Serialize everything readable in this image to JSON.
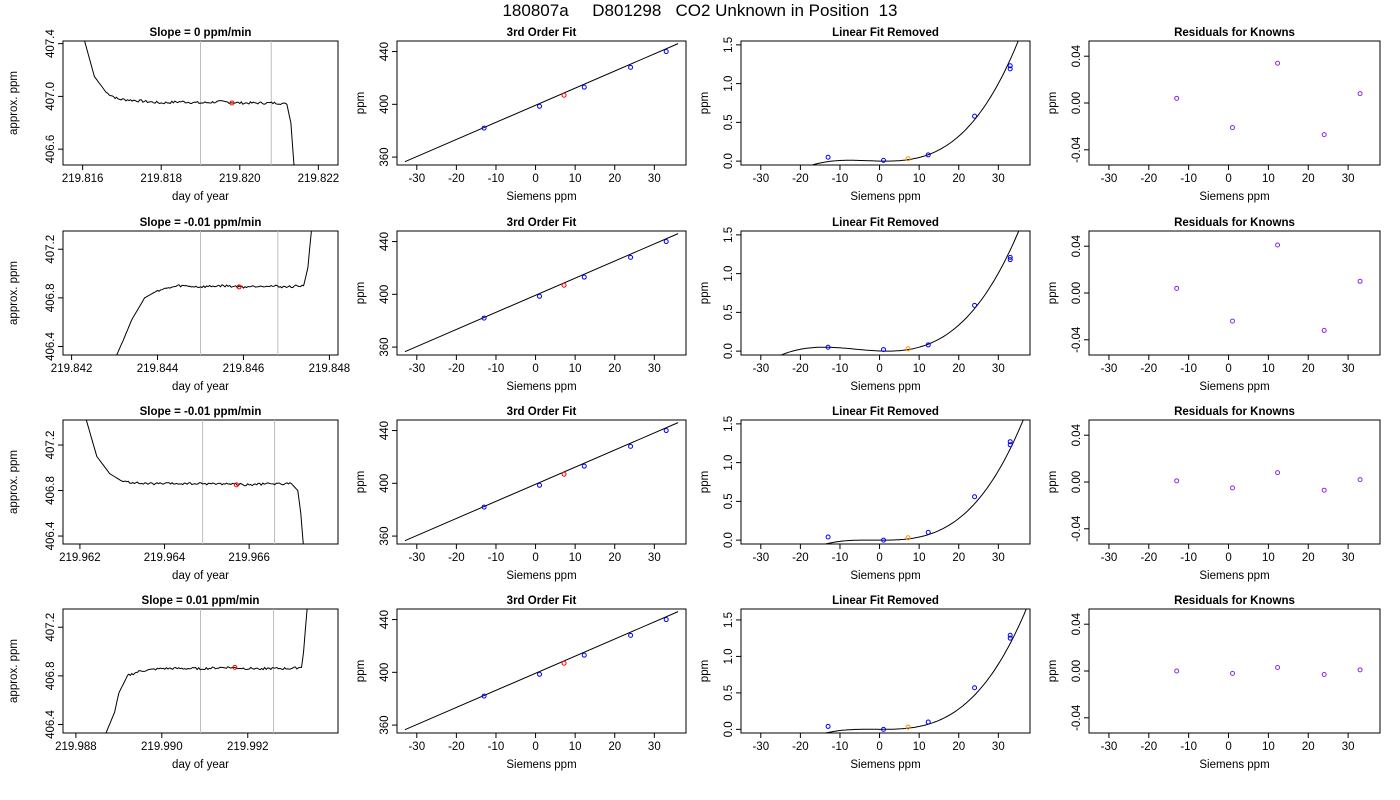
{
  "page_title": "180807a     D801298   CO2 Unknown in Position  13",
  "colors": {
    "axis": "#000000",
    "vline": "#bebebe",
    "known": "#0000ff",
    "unknown": "#ff0000",
    "residual": "#8a2be2",
    "unknown_lfr": "#ff8c00"
  },
  "chart_data": [
    {
      "type": "line",
      "panel": "time-series",
      "row": 1,
      "title": "Slope =  0  ppm/min",
      "xlabel": "day of year",
      "ylabel": "approx. ppm",
      "xlim": [
        219.8155,
        219.8225
      ],
      "ylim": [
        406.48,
        407.42
      ],
      "xticks": [
        219.816,
        219.818,
        219.82,
        219.822
      ],
      "xtick_labels": [
        "219.816",
        "219.818",
        "219.820",
        "219.822"
      ],
      "yticks": [
        406.6,
        407.0,
        407.4
      ],
      "ytick_labels": [
        "406.6",
        "407.0",
        "407.4"
      ],
      "vlines": [
        219.819,
        219.8208
      ],
      "marker": {
        "x": 219.8198,
        "y": 406.95
      },
      "trace": [
        [
          219.8159,
          408.2
        ],
        [
          219.81605,
          407.42
        ],
        [
          219.8163,
          407.15
        ],
        [
          219.8166,
          407.03
        ],
        [
          219.8169,
          406.98
        ],
        [
          219.8173,
          406.97
        ],
        [
          219.818,
          406.95
        ],
        [
          219.8185,
          406.96
        ],
        [
          219.819,
          406.95
        ],
        [
          219.8195,
          406.96
        ],
        [
          219.82,
          406.95
        ],
        [
          219.8205,
          406.95
        ],
        [
          219.821,
          406.95
        ],
        [
          219.8212,
          406.94
        ],
        [
          219.8213,
          406.8
        ],
        [
          219.82138,
          406.48
        ]
      ],
      "noise": 0.012
    },
    {
      "type": "scatter",
      "panel": "fit",
      "row": 1,
      "title": "3rd Order Fit",
      "xlabel": "Siemens ppm",
      "ylabel": "ppm",
      "xlim": [
        -35,
        38
      ],
      "ylim": [
        354,
        448
      ],
      "xticks": [
        -30,
        -20,
        -10,
        0,
        10,
        20,
        30
      ],
      "yticks": [
        360,
        400,
        440
      ],
      "knowns": [
        [
          -13,
          382
        ],
        [
          1,
          398.5
        ],
        [
          12.3,
          413
        ],
        [
          24,
          428
        ],
        [
          33,
          440
        ]
      ],
      "unknown": [
        [
          7.2,
          406.9
        ]
      ],
      "line": [
        [
          -33,
          356.5
        ],
        [
          36,
          446
        ]
      ]
    },
    {
      "type": "scatter",
      "panel": "linear-fit-removed",
      "row": 1,
      "title": "Linear Fit Removed",
      "xlabel": "Siemens ppm",
      "ylabel": "ppm",
      "xlim": [
        -35,
        38
      ],
      "ylim": [
        -0.05,
        1.55
      ],
      "xticks": [
        -30,
        -20,
        -10,
        0,
        10,
        20,
        30
      ],
      "yticks": [
        0,
        0.5,
        1,
        1.5
      ],
      "ytick_labels": [
        "0.0",
        "0.5",
        "1.0",
        "1.5"
      ],
      "knowns": [
        [
          -13,
          0.05
        ],
        [
          1,
          0.01
        ],
        [
          12.3,
          0.08
        ],
        [
          24,
          0.58
        ],
        [
          33,
          1.19
        ],
        [
          33,
          1.23
        ]
      ],
      "unknown": [
        [
          7.2,
          0.03
        ]
      ],
      "curve": {
        "root": 1.5,
        "a": 0.00088,
        "b": 0.0,
        "c": -12.0
      }
    },
    {
      "type": "scatter",
      "panel": "residuals",
      "row": 1,
      "title": "Residuals for Knowns",
      "xlabel": "Siemens ppm",
      "ylabel": "ppm",
      "xlim": [
        -35,
        38
      ],
      "ylim": [
        -0.053,
        0.053
      ],
      "xticks": [
        -30,
        -20,
        -10,
        0,
        10,
        20,
        30
      ],
      "yticks": [
        -0.04,
        0,
        0.04
      ],
      "ytick_labels": [
        "-0.04",
        "0.00",
        "0.04"
      ],
      "points": [
        [
          -13,
          0.004
        ],
        [
          1,
          -0.021
        ],
        [
          12.3,
          0.034
        ],
        [
          24,
          -0.027
        ],
        [
          33,
          0.008
        ]
      ]
    },
    {
      "type": "line",
      "panel": "time-series",
      "row": 2,
      "title": "Slope =  -0.01  ppm/min",
      "xlabel": "day of year",
      "ylabel": "approx. ppm",
      "xlim": [
        219.8418,
        219.8482
      ],
      "ylim": [
        406.33,
        407.35
      ],
      "xticks": [
        219.842,
        219.844,
        219.846,
        219.848
      ],
      "xtick_labels": [
        "219.842",
        "219.844",
        "219.846",
        "219.848"
      ],
      "yticks": [
        406.4,
        406.8,
        407.2
      ],
      "ytick_labels": [
        "406.4",
        "406.8",
        "407.2"
      ],
      "vlines": [
        219.845,
        219.8468
      ],
      "marker": {
        "x": 219.8459,
        "y": 406.89
      },
      "trace": [
        [
          219.84305,
          406.33
        ],
        [
          219.8432,
          406.45
        ],
        [
          219.8434,
          406.62
        ],
        [
          219.8437,
          406.8
        ],
        [
          219.844,
          406.86
        ],
        [
          219.8445,
          406.9
        ],
        [
          219.845,
          406.89
        ],
        [
          219.8455,
          406.9
        ],
        [
          219.846,
          406.89
        ],
        [
          219.8465,
          406.9
        ],
        [
          219.847,
          406.89
        ],
        [
          219.8474,
          406.9
        ],
        [
          219.8475,
          407.05
        ],
        [
          219.84758,
          407.35
        ]
      ],
      "noise": 0.012
    },
    {
      "type": "scatter",
      "panel": "fit",
      "row": 2,
      "title": "3rd Order Fit",
      "xlabel": "Siemens ppm",
      "ylabel": "ppm",
      "xlim": [
        -35,
        38
      ],
      "ylim": [
        354,
        448
      ],
      "xticks": [
        -30,
        -20,
        -10,
        0,
        10,
        20,
        30
      ],
      "yticks": [
        360,
        400,
        440
      ],
      "knowns": [
        [
          -13,
          382
        ],
        [
          1,
          398.5
        ],
        [
          12.3,
          413
        ],
        [
          24,
          428
        ],
        [
          33,
          440
        ]
      ],
      "unknown": [
        [
          7.2,
          406.9
        ]
      ],
      "line": [
        [
          -33,
          356.5
        ],
        [
          36,
          446
        ]
      ]
    },
    {
      "type": "scatter",
      "panel": "linear-fit-removed",
      "row": 2,
      "title": "Linear Fit Removed",
      "xlabel": "Siemens ppm",
      "ylabel": "ppm",
      "xlim": [
        -35,
        38
      ],
      "ylim": [
        -0.05,
        1.55
      ],
      "xticks": [
        -30,
        -20,
        -10,
        0,
        10,
        20,
        30
      ],
      "yticks": [
        0,
        0.5,
        1,
        1.5
      ],
      "ytick_labels": [
        "0.0",
        "0.5",
        "1.0",
        "1.5"
      ],
      "knowns": [
        [
          -13,
          0.05
        ],
        [
          1,
          0.02
        ],
        [
          12.3,
          0.08
        ],
        [
          24,
          0.59
        ],
        [
          33,
          1.18
        ],
        [
          33,
          1.21
        ]
      ],
      "unknown": [
        [
          7.2,
          0.03
        ]
      ],
      "curve": {
        "root": 2.0,
        "a": 0.00074,
        "b": 0.0,
        "c": -22.0
      }
    },
    {
      "type": "scatter",
      "panel": "residuals",
      "row": 2,
      "title": "Residuals for Knowns",
      "xlabel": "Siemens ppm",
      "ylabel": "ppm",
      "xlim": [
        -35,
        38
      ],
      "ylim": [
        -0.053,
        0.053
      ],
      "xticks": [
        -30,
        -20,
        -10,
        0,
        10,
        20,
        30
      ],
      "yticks": [
        -0.04,
        0,
        0.04
      ],
      "ytick_labels": [
        "-0.04",
        "0.00",
        "0.04"
      ],
      "points": [
        [
          -13,
          0.004
        ],
        [
          1,
          -0.024
        ],
        [
          12.3,
          0.041
        ],
        [
          24,
          -0.032
        ],
        [
          33,
          0.01
        ]
      ]
    },
    {
      "type": "line",
      "panel": "time-series",
      "row": 3,
      "title": "Slope =  -0.01  ppm/min",
      "xlabel": "day of year",
      "ylabel": "approx. ppm",
      "xlim": [
        219.9616,
        219.9681
      ],
      "ylim": [
        406.33,
        407.42
      ],
      "xticks": [
        219.962,
        219.964,
        219.966
      ],
      "xtick_labels": [
        "219.962",
        "219.964",
        "219.966"
      ],
      "yticks": [
        406.4,
        406.8,
        407.2
      ],
      "ytick_labels": [
        "406.4",
        "406.8",
        "407.2"
      ],
      "vlines": [
        219.9649,
        219.9666
      ],
      "marker": {
        "x": 219.9657,
        "y": 406.85
      },
      "trace": [
        [
          219.9621,
          408.0
        ],
        [
          219.96215,
          407.42
        ],
        [
          219.9624,
          407.1
        ],
        [
          219.9627,
          406.95
        ],
        [
          219.963,
          406.88
        ],
        [
          219.9635,
          406.86
        ],
        [
          219.964,
          406.86
        ],
        [
          219.9645,
          406.86
        ],
        [
          219.965,
          406.86
        ],
        [
          219.9655,
          406.86
        ],
        [
          219.966,
          406.85
        ],
        [
          219.9665,
          406.86
        ],
        [
          219.967,
          406.86
        ],
        [
          219.96715,
          406.8
        ],
        [
          219.96722,
          406.6
        ],
        [
          219.96728,
          406.33
        ]
      ],
      "noise": 0.012
    },
    {
      "type": "scatter",
      "panel": "fit",
      "row": 3,
      "title": "3rd Order Fit",
      "xlabel": "Siemens ppm",
      "ylabel": "ppm",
      "xlim": [
        -35,
        38
      ],
      "ylim": [
        354,
        448
      ],
      "xticks": [
        -30,
        -20,
        -10,
        0,
        10,
        20,
        30
      ],
      "yticks": [
        360,
        400,
        440
      ],
      "knowns": [
        [
          -13,
          382
        ],
        [
          1,
          398.5
        ],
        [
          12.3,
          413
        ],
        [
          24,
          428
        ],
        [
          33,
          440
        ]
      ],
      "unknown": [
        [
          7.2,
          406.9
        ]
      ],
      "line": [
        [
          -33,
          356.5
        ],
        [
          36,
          446
        ]
      ]
    },
    {
      "type": "scatter",
      "panel": "linear-fit-removed",
      "row": 3,
      "title": "Linear Fit Removed",
      "xlabel": "Siemens ppm",
      "ylabel": "ppm",
      "xlim": [
        -35,
        38
      ],
      "ylim": [
        -0.05,
        1.55
      ],
      "xticks": [
        -30,
        -20,
        -10,
        0,
        10,
        20,
        30
      ],
      "yticks": [
        0,
        0.5,
        1,
        1.5
      ],
      "ytick_labels": [
        "0.0",
        "0.5",
        "1.0",
        "1.5"
      ],
      "knowns": [
        [
          -13,
          0.04
        ],
        [
          1,
          0.0
        ],
        [
          12.3,
          0.1
        ],
        [
          24,
          0.56
        ],
        [
          33,
          1.23
        ],
        [
          33,
          1.27
        ]
      ],
      "unknown": [
        [
          7.2,
          0.03
        ]
      ],
      "curve": {
        "root": 0.5,
        "a": 0.00088,
        "b": 0.0,
        "c": -5.0
      }
    },
    {
      "type": "scatter",
      "panel": "residuals",
      "row": 3,
      "title": "Residuals for Knowns",
      "xlabel": "Siemens ppm",
      "ylabel": "ppm",
      "xlim": [
        -35,
        38
      ],
      "ylim": [
        -0.053,
        0.053
      ],
      "xticks": [
        -30,
        -20,
        -10,
        0,
        10,
        20,
        30
      ],
      "yticks": [
        -0.04,
        0,
        0.04
      ],
      "ytick_labels": [
        "-0.04",
        "0.00",
        "0.04"
      ],
      "points": [
        [
          -13,
          0.001
        ],
        [
          1,
          -0.005
        ],
        [
          12.3,
          0.008
        ],
        [
          24,
          -0.007
        ],
        [
          33,
          0.002
        ]
      ]
    },
    {
      "type": "line",
      "panel": "time-series",
      "row": 4,
      "title": "Slope =  0.01  ppm/min",
      "xlabel": "day of year",
      "ylabel": "approx. ppm",
      "xlim": [
        219.9877,
        219.9941
      ],
      "ylim": [
        406.33,
        407.35
      ],
      "xticks": [
        219.988,
        219.99,
        219.992
      ],
      "xtick_labels": [
        "219.988",
        "219.990",
        "219.992"
      ],
      "yticks": [
        406.4,
        406.8,
        407.2
      ],
      "ytick_labels": [
        "406.4",
        "406.8",
        "407.2"
      ],
      "vlines": [
        219.9909,
        219.9926
      ],
      "marker": {
        "x": 219.9917,
        "y": 406.87
      },
      "trace": [
        [
          219.9887,
          406.33
        ],
        [
          219.9889,
          406.5
        ],
        [
          219.989,
          406.66
        ],
        [
          219.9892,
          406.8
        ],
        [
          219.9895,
          406.84
        ],
        [
          219.99,
          406.86
        ],
        [
          219.9905,
          406.86
        ],
        [
          219.991,
          406.86
        ],
        [
          219.9915,
          406.87
        ],
        [
          219.992,
          406.86
        ],
        [
          219.9925,
          406.86
        ],
        [
          219.993,
          406.86
        ],
        [
          219.99325,
          406.87
        ],
        [
          219.9933,
          407.0
        ],
        [
          219.99338,
          407.35
        ]
      ],
      "noise": 0.012
    },
    {
      "type": "scatter",
      "panel": "fit",
      "row": 4,
      "title": "3rd Order Fit",
      "xlabel": "Siemens ppm",
      "ylabel": "ppm",
      "xlim": [
        -35,
        38
      ],
      "ylim": [
        354,
        448
      ],
      "xticks": [
        -30,
        -20,
        -10,
        0,
        10,
        20,
        30
      ],
      "yticks": [
        360,
        400,
        440
      ],
      "knowns": [
        [
          -13,
          382
        ],
        [
          1,
          398.5
        ],
        [
          12.3,
          413
        ],
        [
          24,
          428
        ],
        [
          33,
          440
        ]
      ],
      "unknown": [
        [
          7.2,
          406.9
        ]
      ],
      "line": [
        [
          -33,
          356.5
        ],
        [
          36,
          446
        ]
      ]
    },
    {
      "type": "scatter",
      "panel": "linear-fit-removed",
      "row": 4,
      "title": "Linear Fit Removed",
      "xlabel": "Siemens ppm",
      "ylabel": "ppm",
      "xlim": [
        -35,
        38
      ],
      "ylim": [
        -0.05,
        1.65
      ],
      "xticks": [
        -30,
        -20,
        -10,
        0,
        10,
        20,
        30
      ],
      "yticks": [
        0,
        0.5,
        1,
        1.5
      ],
      "ytick_labels": [
        "0.0",
        "0.5",
        "1.0",
        "1.5"
      ],
      "knowns": [
        [
          -13,
          0.04
        ],
        [
          1,
          0.0
        ],
        [
          12.3,
          0.1
        ],
        [
          24,
          0.57
        ],
        [
          33,
          1.25
        ],
        [
          33,
          1.29
        ]
      ],
      "unknown": [
        [
          7.2,
          0.03
        ]
      ],
      "curve": {
        "root": 0.5,
        "a": 0.00088,
        "b": 0.0,
        "c": -5.0
      }
    },
    {
      "type": "scatter",
      "panel": "residuals",
      "row": 4,
      "title": "Residuals for Knowns",
      "xlabel": "Siemens ppm",
      "ylabel": "ppm",
      "xlim": [
        -35,
        38
      ],
      "ylim": [
        -0.053,
        0.053
      ],
      "xticks": [
        -30,
        -20,
        -10,
        0,
        10,
        20,
        30
      ],
      "yticks": [
        -0.04,
        0,
        0.04
      ],
      "ytick_labels": [
        "-0.04",
        "0.00",
        "0.04"
      ],
      "points": [
        [
          -13,
          0.0
        ],
        [
          1,
          -0.002
        ],
        [
          12.3,
          0.003
        ],
        [
          24,
          -0.003
        ],
        [
          33,
          0.001
        ]
      ]
    }
  ]
}
